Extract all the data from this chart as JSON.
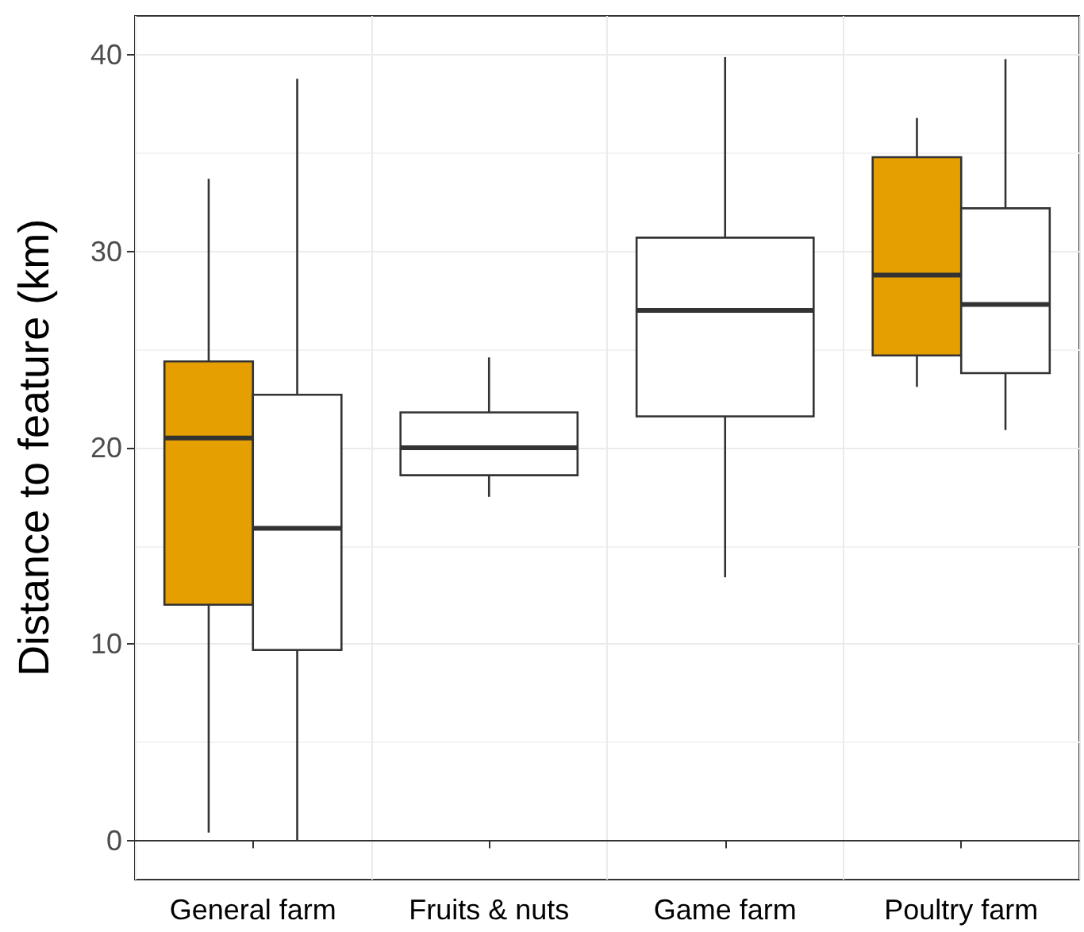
{
  "chart_data": {
    "type": "box",
    "ylabel": "Distance to feature (km)",
    "categories": [
      "General farm",
      "Fruits & nuts",
      "Game farm",
      "Poultry farm"
    ],
    "ylim": [
      -2,
      42
    ],
    "yticks": [
      0,
      10,
      20,
      30,
      40
    ],
    "grid": true,
    "series": [
      {
        "color": "#e69f00",
        "boxes": [
          {
            "low": 0.4,
            "q1": 12.0,
            "median": 20.5,
            "q3": 24.4,
            "high": 33.7
          },
          null,
          null,
          {
            "low": 23.1,
            "q1": 24.7,
            "median": 28.8,
            "q3": 34.8,
            "high": 36.8
          }
        ]
      },
      {
        "color": "#ffffff",
        "boxes": [
          {
            "low": 0,
            "q1": 9.7,
            "median": 15.9,
            "q3": 22.7,
            "high": 38.8
          },
          {
            "low": 17.5,
            "q1": 18.6,
            "median": 20.0,
            "q3": 21.8,
            "high": 24.6
          },
          {
            "low": 13.4,
            "q1": 21.6,
            "median": 27.0,
            "q3": 30.7,
            "high": 39.9
          },
          {
            "low": 20.9,
            "q1": 23.8,
            "median": 27.3,
            "q3": 32.2,
            "high": 39.8
          }
        ]
      }
    ]
  }
}
